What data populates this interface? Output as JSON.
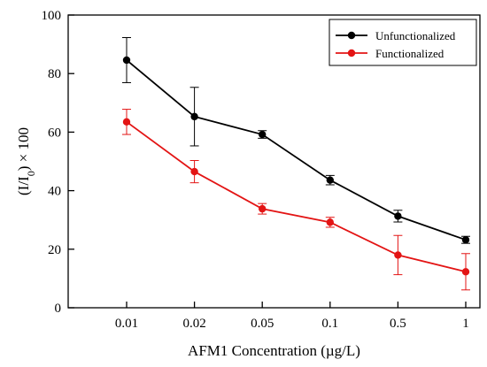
{
  "chart_data": {
    "type": "line",
    "xlabel": "AFM1 Concentration (µg/L)",
    "ylabel": {
      "main": "(I/I",
      "subscript": "0",
      "suffix": ") × 100"
    },
    "categories": [
      "0.01",
      "0.02",
      "0.05",
      "0.1",
      "0.5",
      "1"
    ],
    "ylim": [
      0,
      100
    ],
    "yticks": [
      0,
      20,
      40,
      60,
      80,
      100
    ],
    "legend_position": "top-right",
    "grid": false,
    "series": [
      {
        "name": "Unfunctionalized",
        "color": "#000000",
        "values": [
          84.6,
          65.3,
          59.2,
          43.6,
          31.3,
          23.2
        ],
        "errors": [
          7.7,
          10.0,
          1.3,
          1.6,
          2.0,
          1.2
        ]
      },
      {
        "name": "Functionalized",
        "color": "#e31414",
        "values": [
          63.5,
          46.5,
          33.8,
          29.2,
          18.0,
          12.3
        ],
        "errors": [
          4.3,
          3.8,
          1.8,
          1.7,
          6.7,
          6.2
        ]
      }
    ]
  }
}
